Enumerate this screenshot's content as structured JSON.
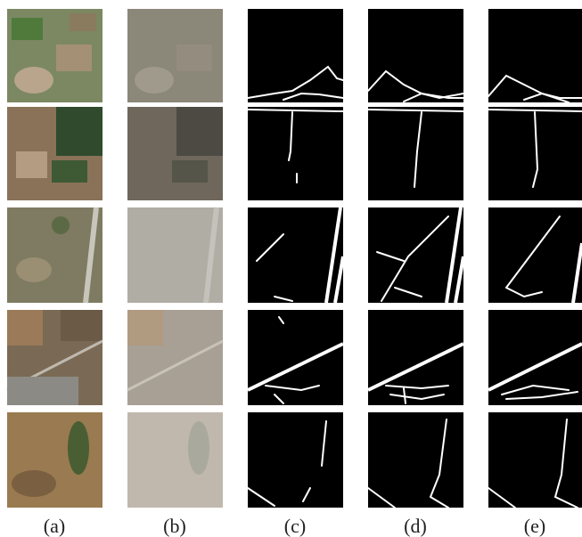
{
  "figure": {
    "labels": [
      "(a)",
      "(b)",
      "(c)",
      "(d)",
      "(e)"
    ]
  }
}
